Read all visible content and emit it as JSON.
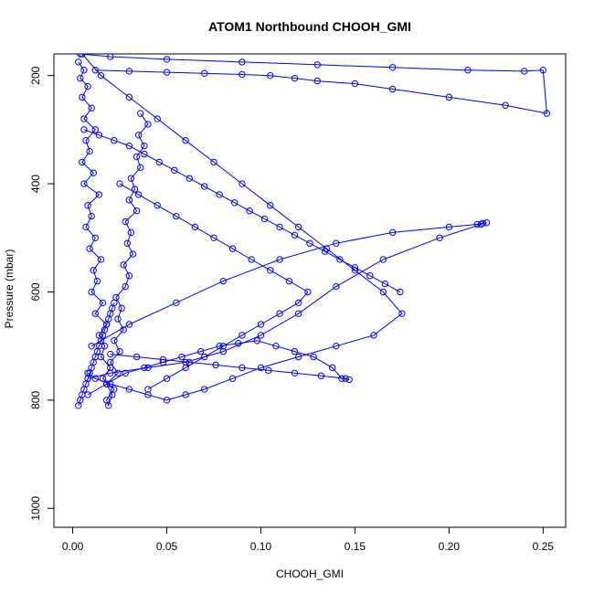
{
  "chart_data": {
    "type": "scatter",
    "title": "ATOM1 Northbound CHOOH_GMI",
    "xlabel": "CHOOH_GMI",
    "ylabel": "Pressure (mbar)",
    "xlim": [
      -0.01,
      0.262
    ],
    "ylim": [
      1035,
      160
    ],
    "y_reversed": true,
    "grid": false,
    "legend": "none",
    "colors": {
      "series": "#0000ff",
      "axes": "#000000",
      "background": "#ffffff"
    },
    "x_ticks": [
      0.0,
      0.05,
      0.1,
      0.15,
      0.2,
      0.25
    ],
    "x_tick_labels": [
      "0.00",
      "0.05",
      "0.10",
      "0.15",
      "0.20",
      "0.25"
    ],
    "y_ticks": [
      200,
      400,
      600,
      800,
      1000
    ],
    "y_tick_labels": [
      "200",
      "400",
      "600",
      "800",
      "1000"
    ],
    "series": [
      {
        "x": [
          0.003,
          0.006,
          0.004,
          0.008,
          0.005,
          0.01,
          0.006,
          0.012,
          0.007,
          0.009,
          0.005,
          0.011,
          0.006,
          0.014,
          0.008,
          0.01,
          0.007,
          0.012,
          0.009,
          0.015,
          0.011,
          0.013,
          0.01,
          0.016,
          0.012,
          0.018,
          0.014,
          0.017,
          0.015,
          0.02,
          0.016,
          0.022,
          0.018,
          0.019,
          0.021,
          0.018,
          0.024,
          0.02,
          0.025,
          0.022,
          0.027,
          0.024,
          0.026,
          0.023,
          0.028,
          0.03,
          0.027,
          0.032,
          0.029,
          0.031,
          0.028,
          0.034,
          0.03,
          0.033,
          0.031,
          0.036,
          0.034,
          0.038,
          0.035,
          0.04,
          0.036
        ],
        "y": [
          175,
          190,
          205,
          220,
          240,
          260,
          280,
          300,
          320,
          340,
          360,
          380,
          400,
          420,
          440,
          460,
          480,
          500,
          520,
          540,
          560,
          580,
          600,
          620,
          640,
          660,
          680,
          700,
          720,
          740,
          760,
          780,
          800,
          810,
          790,
          770,
          750,
          730,
          710,
          690,
          670,
          650,
          630,
          610,
          590,
          570,
          550,
          530,
          510,
          490,
          470,
          450,
          430,
          410,
          390,
          370,
          350,
          330,
          310,
          290,
          270
        ]
      },
      {
        "x": [
          0.005,
          0.015,
          0.03,
          0.045,
          0.06,
          0.075,
          0.09,
          0.105,
          0.12,
          0.135,
          0.15,
          0.165,
          0.175,
          0.16,
          0.14,
          0.12,
          0.1,
          0.085,
          0.07,
          0.06,
          0.05,
          0.04,
          0.03,
          0.02,
          0.012,
          0.008
        ],
        "y": [
          160,
          200,
          240,
          280,
          320,
          360,
          400,
          440,
          480,
          520,
          560,
          600,
          640,
          680,
          700,
          720,
          740,
          760,
          780,
          790,
          800,
          790,
          780,
          770,
          760,
          750
        ]
      },
      {
        "x": [
          0.01,
          0.03,
          0.055,
          0.08,
          0.11,
          0.14,
          0.17,
          0.2,
          0.215,
          0.218,
          0.22,
          0.217,
          0.195,
          0.165,
          0.14,
          0.12,
          0.1,
          0.08,
          0.06,
          0.04,
          0.02,
          0.008
        ],
        "y": [
          700,
          660,
          620,
          580,
          540,
          510,
          490,
          480,
          475,
          473,
          472,
          475,
          500,
          540,
          590,
          640,
          680,
          710,
          730,
          740,
          750,
          760
        ]
      },
      {
        "x": [
          0.004,
          0.02,
          0.05,
          0.09,
          0.13,
          0.17,
          0.21,
          0.24,
          0.25,
          0.252,
          0.23,
          0.2,
          0.17,
          0.15,
          0.13,
          0.118,
          0.105,
          0.09,
          0.07,
          0.05,
          0.03,
          0.012
        ],
        "y": [
          160,
          165,
          170,
          175,
          180,
          185,
          190,
          192,
          190,
          270,
          255,
          240,
          225,
          215,
          210,
          205,
          200,
          198,
          196,
          194,
          192,
          190
        ]
      },
      {
        "x": [
          0.008,
          0.018,
          0.028,
          0.038,
          0.048,
          0.058,
          0.068,
          0.078,
          0.088,
          0.098,
          0.108,
          0.118,
          0.128,
          0.138,
          0.143,
          0.147,
          0.145,
          0.132,
          0.118,
          0.104,
          0.09,
          0.076,
          0.062,
          0.048,
          0.034,
          0.02
        ],
        "y": [
          790,
          770,
          750,
          740,
          730,
          720,
          710,
          700,
          695,
          690,
          700,
          710,
          720,
          740,
          760,
          762,
          760,
          755,
          750,
          745,
          740,
          735,
          730,
          725,
          720,
          715
        ]
      },
      {
        "x": [
          0.006,
          0.014,
          0.022,
          0.03,
          0.038,
          0.046,
          0.054,
          0.062,
          0.07,
          0.078,
          0.086,
          0.094,
          0.102,
          0.11,
          0.118,
          0.126,
          0.134,
          0.142,
          0.15,
          0.158,
          0.166,
          0.174
        ],
        "y": [
          300,
          310,
          320,
          330,
          345,
          360,
          375,
          390,
          405,
          420,
          435,
          450,
          465,
          480,
          495,
          510,
          525,
          540,
          555,
          570,
          585,
          600
        ]
      },
      {
        "x": [
          0.003,
          0.004,
          0.005,
          0.006,
          0.007,
          0.008,
          0.009,
          0.01,
          0.011,
          0.012,
          0.013,
          0.014,
          0.015,
          0.016,
          0.017,
          0.018,
          0.019,
          0.02,
          0.021,
          0.022
        ],
        "y": [
          810,
          800,
          790,
          780,
          770,
          760,
          750,
          740,
          730,
          720,
          710,
          700,
          690,
          680,
          670,
          660,
          650,
          640,
          630,
          620
        ]
      },
      {
        "x": [
          0.025,
          0.035,
          0.045,
          0.055,
          0.065,
          0.075,
          0.085,
          0.095,
          0.105,
          0.115,
          0.125,
          0.12,
          0.11,
          0.1,
          0.09,
          0.08,
          0.07,
          0.06,
          0.05,
          0.04
        ],
        "y": [
          400,
          420,
          440,
          460,
          480,
          500,
          520,
          540,
          560,
          580,
          600,
          620,
          640,
          660,
          680,
          700,
          720,
          740,
          760,
          780
        ]
      }
    ]
  }
}
